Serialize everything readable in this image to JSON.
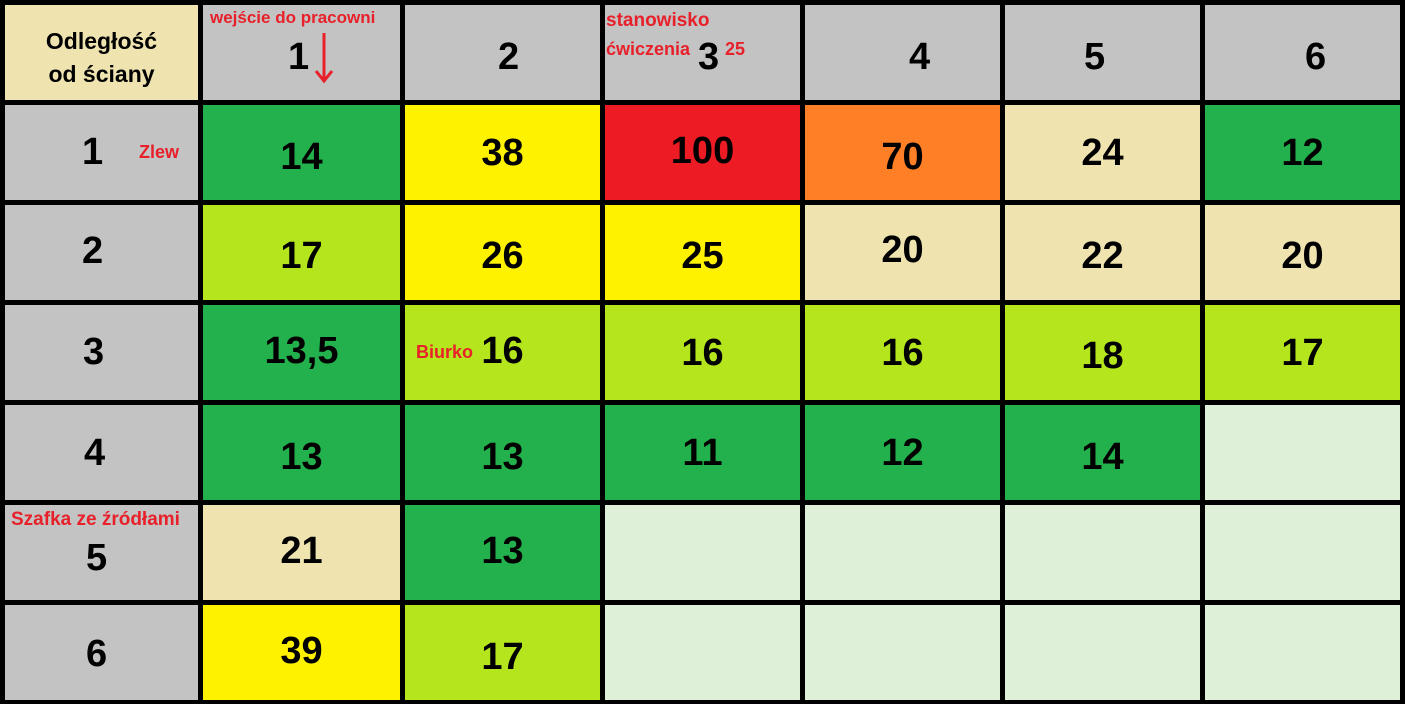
{
  "corner_label": "Odległość\nod ściany",
  "column_headers": [
    "1",
    "2",
    "3",
    "4",
    "5",
    "6"
  ],
  "row_headers": [
    "1",
    "2",
    "3",
    "4",
    "5",
    "6"
  ],
  "annotations": {
    "entrance": "wejście do pracowni",
    "workstation_line1": "stanowisko",
    "workstation_line2": "ćwiczenia",
    "workstation_value": "25",
    "sink": "Zlew",
    "desk": "Biurko",
    "cabinet": "Szafka ze źródłami"
  },
  "colors": {
    "header_gray": "#c3c3c3",
    "corner_beige": "#efe4b0",
    "dark_green": "#22b14c",
    "light_green": "#b5e61d",
    "yellow": "#fff200",
    "red": "#ed1c24",
    "orange": "#ff7f27",
    "beige": "#efe4b0",
    "empty": "#dff0d8",
    "annotation_red": "#e8202a"
  },
  "rows": [
    {
      "cells": [
        {
          "value": "14",
          "color": "dark_green"
        },
        {
          "value": "38",
          "color": "yellow"
        },
        {
          "value": "100",
          "color": "red"
        },
        {
          "value": "70",
          "color": "orange"
        },
        {
          "value": "24",
          "color": "beige"
        },
        {
          "value": "12",
          "color": "dark_green"
        }
      ]
    },
    {
      "cells": [
        {
          "value": "17",
          "color": "light_green"
        },
        {
          "value": "26",
          "color": "yellow"
        },
        {
          "value": "25",
          "color": "yellow"
        },
        {
          "value": "20",
          "color": "beige"
        },
        {
          "value": "22",
          "color": "beige"
        },
        {
          "value": "20",
          "color": "beige"
        }
      ]
    },
    {
      "cells": [
        {
          "value": "13,5",
          "color": "dark_green"
        },
        {
          "value": "16",
          "color": "light_green"
        },
        {
          "value": "16",
          "color": "light_green"
        },
        {
          "value": "16",
          "color": "light_green"
        },
        {
          "value": "18",
          "color": "light_green"
        },
        {
          "value": "17",
          "color": "light_green"
        }
      ]
    },
    {
      "cells": [
        {
          "value": "13",
          "color": "dark_green"
        },
        {
          "value": "13",
          "color": "dark_green"
        },
        {
          "value": "11",
          "color": "dark_green"
        },
        {
          "value": "12",
          "color": "dark_green"
        },
        {
          "value": "14",
          "color": "dark_green"
        },
        {
          "value": "",
          "color": "empty"
        }
      ]
    },
    {
      "cells": [
        {
          "value": "21",
          "color": "beige"
        },
        {
          "value": "13",
          "color": "dark_green"
        },
        {
          "value": "",
          "color": "empty"
        },
        {
          "value": "",
          "color": "empty"
        },
        {
          "value": "",
          "color": "empty"
        },
        {
          "value": "",
          "color": "empty"
        }
      ]
    },
    {
      "cells": [
        {
          "value": "39",
          "color": "yellow"
        },
        {
          "value": "17",
          "color": "light_green"
        },
        {
          "value": "",
          "color": "empty"
        },
        {
          "value": "",
          "color": "empty"
        },
        {
          "value": "",
          "color": "empty"
        },
        {
          "value": "",
          "color": "empty"
        }
      ]
    }
  ]
}
